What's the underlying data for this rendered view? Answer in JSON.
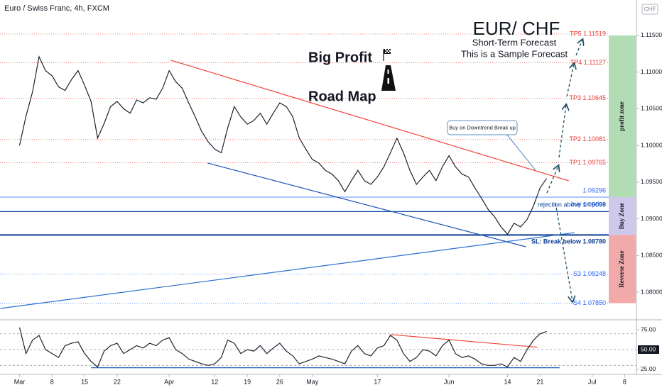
{
  "header": {
    "symbol": "Euro / Swiss Franc, 4h, FXCM",
    "currency": "CHF"
  },
  "annotations": {
    "title": "EUR/ CHF",
    "subtitle": "Short-Term Forecast",
    "note": "This is a Sample Forecast",
    "road_1": "Big Profit",
    "road_2": "Road Map",
    "callout": "Buy on Downtrend Break up"
  },
  "chart_data": [
    {
      "type": "line",
      "color": "#1e222d",
      "x": [
        0,
        1,
        2,
        3,
        4,
        5,
        6,
        7,
        8,
        9,
        10,
        11,
        12,
        13,
        14,
        15,
        16,
        17,
        18,
        19,
        20,
        21,
        22,
        23,
        24,
        25,
        26,
        27,
        28,
        29,
        30,
        31,
        32,
        33,
        34,
        35,
        36,
        37,
        38,
        39,
        40,
        41,
        42,
        43,
        44,
        45,
        46,
        47,
        48,
        49,
        50,
        51,
        52,
        53,
        54,
        55,
        56,
        57,
        58,
        59,
        60,
        61,
        62,
        63,
        64,
        65,
        66,
        67,
        68,
        69,
        70,
        71,
        72,
        73,
        74,
        75,
        76,
        77,
        78,
        79,
        80,
        81
      ],
      "values": [
        1.1,
        1.104,
        1.1073,
        1.1121,
        1.1102,
        1.1095,
        1.108,
        1.1075,
        1.109,
        1.1102,
        1.1082,
        1.106,
        1.101,
        1.103,
        1.1053,
        1.106,
        1.105,
        1.1044,
        1.1062,
        1.1058,
        1.1065,
        1.1063,
        1.1078,
        1.1102,
        1.1087,
        1.1078,
        1.1058,
        1.1039,
        1.1019,
        1.1005,
        1.0995,
        1.099,
        1.1024,
        1.1053,
        1.1039,
        1.1029,
        1.1034,
        1.1044,
        1.1029,
        1.1044,
        1.1058,
        1.1053,
        1.1039,
        1.101,
        1.0995,
        1.0981,
        1.0976,
        1.0966,
        1.0961,
        1.0952,
        1.0937,
        1.0952,
        1.0966,
        1.0952,
        1.0947,
        1.0957,
        1.0971,
        1.099,
        1.101,
        1.099,
        1.0966,
        1.0947,
        1.0957,
        1.0966,
        1.0952,
        1.0971,
        1.0986,
        1.0971,
        1.0961,
        1.0957,
        1.0942,
        1.0928,
        1.0913,
        1.0903,
        1.0889,
        1.0879,
        1.0894,
        1.0889,
        1.0899,
        1.0918,
        1.0942,
        1.0955
      ],
      "xlim": [
        -3,
        94.7
      ],
      "xticks": [
        {
          "value": 0,
          "label": "Mar"
        },
        {
          "value": 5,
          "label": "8"
        },
        {
          "value": 10,
          "label": "15"
        },
        {
          "value": 15,
          "label": "22"
        },
        {
          "value": 23,
          "label": "Apr"
        },
        {
          "value": 30,
          "label": "12"
        },
        {
          "value": 35,
          "label": "19"
        },
        {
          "value": 40,
          "label": "26"
        },
        {
          "value": 45,
          "label": "May"
        },
        {
          "value": 55,
          "label": "17"
        },
        {
          "value": 66,
          "label": "Jun"
        },
        {
          "value": 75,
          "label": "14"
        },
        {
          "value": 80,
          "label": "21"
        },
        {
          "value": 88,
          "label": "Jul"
        },
        {
          "value": 93,
          "label": "8"
        }
      ],
      "ylim": [
        1.07633,
        1.11983
      ],
      "yticks": [
        {
          "value": 1.08,
          "label": "1.08000"
        },
        {
          "value": 1.085,
          "label": "1.08500"
        },
        {
          "value": 1.09,
          "label": "1.09000"
        },
        {
          "value": 1.095,
          "label": "1.09500"
        },
        {
          "value": 1.1,
          "label": "1.10000"
        },
        {
          "value": 1.105,
          "label": "1.10500"
        },
        {
          "value": 1.11,
          "label": "1.11000"
        },
        {
          "value": 1.115,
          "label": "1.11500"
        }
      ],
      "levels": [
        {
          "value": 1.11519,
          "label": "TP5 1.11519",
          "color": "#e53935"
        },
        {
          "value": 1.11127,
          "label": "TP4 1.11127",
          "color": "#e53935"
        },
        {
          "value": 1.10645,
          "label": "TP3 1.10645",
          "color": "#e53935"
        },
        {
          "value": 1.10081,
          "label": "TP2 1.10081",
          "color": "#e53935"
        },
        {
          "value": 1.09765,
          "label": "TP1 1.09765",
          "color": "#e53935"
        },
        {
          "value": 1.09296,
          "label": "1.09296",
          "note": "buy on price",
          "color": "#2962ff"
        },
        {
          "value": 1.09099,
          "label": "rejection above 1.09099",
          "color": "#0d47a1"
        },
        {
          "value": 1.0878,
          "label": "SL: Break below 1.08780",
          "color": "#0d3c91"
        },
        {
          "value": 1.08248,
          "label": "S3 1.08248",
          "color": "#2962ff"
        },
        {
          "value": 1.0785,
          "label": "S4 1.07850",
          "color": "#2962ff"
        }
      ],
      "zones": [
        {
          "label": "profit zone",
          "from": 1.09296,
          "to": 1.115,
          "color": "#a5d6a7"
        },
        {
          "label": "Buy Zone",
          "from": 1.0878,
          "to": 1.09296,
          "color": "#c5c0e6"
        },
        {
          "label": "Reverse Zone",
          "from": 1.0785,
          "to": 1.0878,
          "color": "#ef9a9a"
        }
      ],
      "trendlines": [
        {
          "x": [
            23.25,
            84.4
          ],
          "y": [
            1.11162,
            1.09518
          ],
          "color": "#f44336"
        },
        {
          "x": [
            28.9,
            77.8
          ],
          "y": [
            1.0976,
            1.08619
          ],
          "color": "#1e53b8"
        },
        {
          "x": [
            -2.95,
            85.3
          ],
          "y": [
            1.07778,
            1.08812
          ],
          "color": "#2a6fcf"
        }
      ]
    },
    {
      "type": "line",
      "color": "#1e222d",
      "x": [
        0,
        1,
        2,
        3,
        4,
        5,
        6,
        7,
        8,
        9,
        10,
        11,
        12,
        13,
        14,
        15,
        16,
        17,
        18,
        19,
        20,
        21,
        22,
        23,
        24,
        25,
        26,
        27,
        28,
        29,
        30,
        31,
        32,
        33,
        34,
        35,
        36,
        37,
        38,
        39,
        40,
        41,
        42,
        43,
        44,
        45,
        46,
        47,
        48,
        49,
        50,
        51,
        52,
        53,
        54,
        55,
        56,
        57,
        58,
        59,
        60,
        61,
        62,
        63,
        64,
        65,
        66,
        67,
        68,
        69,
        70,
        71,
        72,
        73,
        74,
        75,
        76,
        77,
        78,
        79,
        80,
        81
      ],
      "values": [
        78,
        45,
        62,
        68,
        50,
        45,
        40,
        55,
        58,
        60,
        45,
        35,
        28,
        48,
        55,
        58,
        45,
        50,
        55,
        52,
        58,
        55,
        62,
        65,
        50,
        45,
        38,
        35,
        32,
        30,
        32,
        40,
        62,
        58,
        45,
        50,
        48,
        55,
        45,
        52,
        58,
        48,
        42,
        32,
        35,
        38,
        42,
        40,
        38,
        35,
        32,
        48,
        55,
        45,
        42,
        52,
        55,
        68,
        62,
        45,
        35,
        40,
        50,
        48,
        42,
        55,
        62,
        45,
        40,
        42,
        38,
        32,
        30,
        30,
        32,
        28,
        40,
        35,
        50,
        62,
        70,
        73
      ],
      "ylim": [
        18.6,
        86.8
      ],
      "yticks": [
        {
          "value": 25,
          "label": "25.00"
        },
        {
          "value": 50,
          "label": "50.00"
        },
        {
          "value": 75,
          "label": "75.00"
        }
      ],
      "hlines": [
        70,
        50,
        30
      ],
      "trendlines": [
        {
          "x": [
            57,
            79.6
          ],
          "y": [
            69,
            53
          ],
          "color": "#f44336"
        },
        {
          "x": [
            11,
            83
          ],
          "y": [
            27,
            27
          ],
          "color": "#1e53b8"
        }
      ]
    }
  ]
}
